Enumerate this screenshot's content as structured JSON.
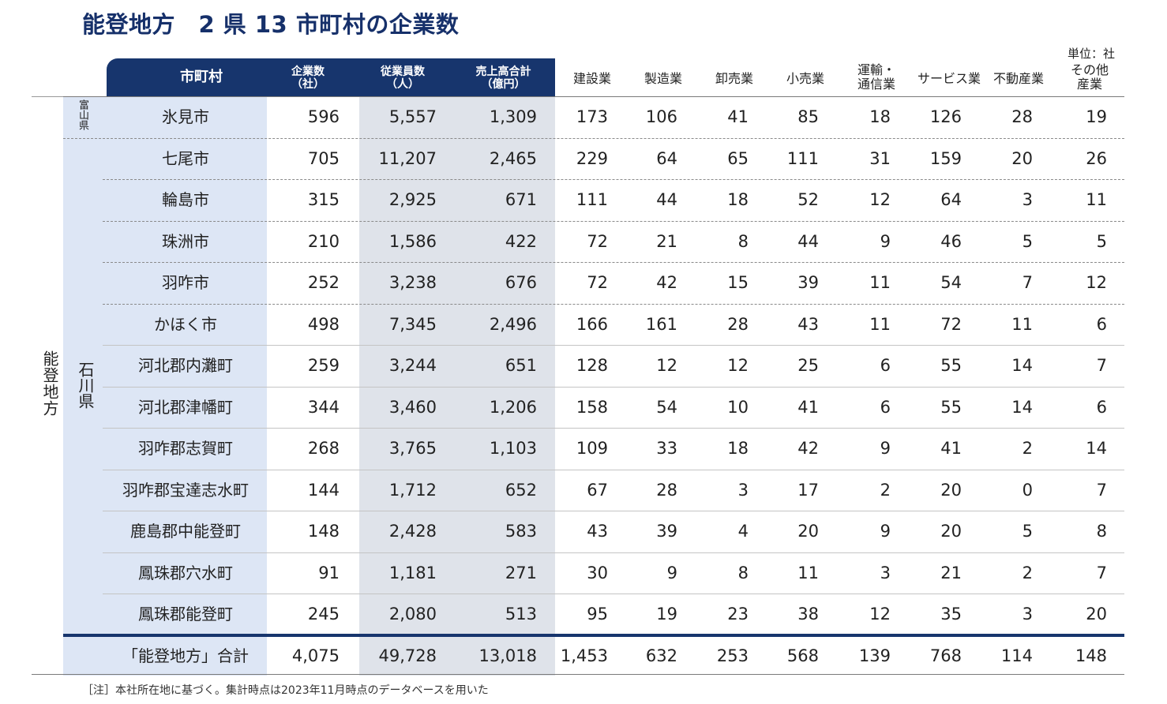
{
  "title": "能登地方　2 県 13 市町村の企業数",
  "unit_label": "単位：社",
  "headers": {
    "municipality": "市町村",
    "companies": [
      "企業数",
      "（社）"
    ],
    "employees": [
      "従業員数",
      "（人）"
    ],
    "sales": [
      "売上高合計",
      "（億円）"
    ],
    "construction": "建設業",
    "manufacturing": "製造業",
    "wholesale": "卸売業",
    "retail": "小売業",
    "transport": [
      "運輸・",
      "通信業"
    ],
    "service": "サービス業",
    "realestate": "不動産業",
    "other": [
      "その他",
      "産業"
    ]
  },
  "region_label": "能登地方",
  "prefectures": {
    "toyama": "富山県",
    "ishikawa": "石川県"
  },
  "rows": [
    {
      "name": "氷見市",
      "values": [
        "596",
        "5,557",
        "1,309",
        "173",
        "106",
        "41",
        "85",
        "18",
        "126",
        "28",
        "19"
      ]
    },
    {
      "name": "七尾市",
      "values": [
        "705",
        "11,207",
        "2,465",
        "229",
        "64",
        "65",
        "111",
        "31",
        "159",
        "20",
        "26"
      ]
    },
    {
      "name": "輪島市",
      "values": [
        "315",
        "2,925",
        "671",
        "111",
        "44",
        "18",
        "52",
        "12",
        "64",
        "3",
        "11"
      ]
    },
    {
      "name": "珠洲市",
      "values": [
        "210",
        "1,586",
        "422",
        "72",
        "21",
        "8",
        "44",
        "9",
        "46",
        "5",
        "5"
      ]
    },
    {
      "name": "羽咋市",
      "values": [
        "252",
        "3,238",
        "676",
        "72",
        "42",
        "15",
        "39",
        "11",
        "54",
        "7",
        "12"
      ]
    },
    {
      "name": "かほく市",
      "values": [
        "498",
        "7,345",
        "2,496",
        "166",
        "161",
        "28",
        "43",
        "11",
        "72",
        "11",
        "6"
      ]
    },
    {
      "name": "河北郡内灘町",
      "values": [
        "259",
        "3,244",
        "651",
        "128",
        "12",
        "12",
        "25",
        "6",
        "55",
        "14",
        "7"
      ]
    },
    {
      "name": "河北郡津幡町",
      "values": [
        "344",
        "3,460",
        "1,206",
        "158",
        "54",
        "10",
        "41",
        "6",
        "55",
        "14",
        "6"
      ]
    },
    {
      "name": "羽咋郡志賀町",
      "values": [
        "268",
        "3,765",
        "1,103",
        "109",
        "33",
        "18",
        "42",
        "9",
        "41",
        "2",
        "14"
      ]
    },
    {
      "name": "羽咋郡宝達志水町",
      "values": [
        "144",
        "1,712",
        "652",
        "67",
        "28",
        "3",
        "17",
        "2",
        "20",
        "0",
        "7"
      ]
    },
    {
      "name": "鹿島郡中能登町",
      "values": [
        "148",
        "2,428",
        "583",
        "43",
        "39",
        "4",
        "20",
        "9",
        "20",
        "5",
        "8"
      ]
    },
    {
      "name": "鳳珠郡穴水町",
      "values": [
        "91",
        "1,181",
        "271",
        "30",
        "9",
        "8",
        "11",
        "3",
        "21",
        "2",
        "7"
      ]
    },
    {
      "name": "鳳珠郡能登町",
      "values": [
        "245",
        "2,080",
        "513",
        "95",
        "19",
        "23",
        "38",
        "12",
        "35",
        "3",
        "20"
      ]
    }
  ],
  "total": {
    "name": "「能登地方」合計",
    "values": [
      "4,075",
      "49,728",
      "13,018",
      "1,453",
      "632",
      "253",
      "568",
      "139",
      "768",
      "114",
      "148"
    ]
  },
  "note": "［注］本社所在地に基づく。集計時点は2023年11月時点のデータベースを用いた",
  "colors": {
    "navy": "#17356d",
    "light_blue": "#dde6f5",
    "grey_blue": "#dfe3ea"
  }
}
